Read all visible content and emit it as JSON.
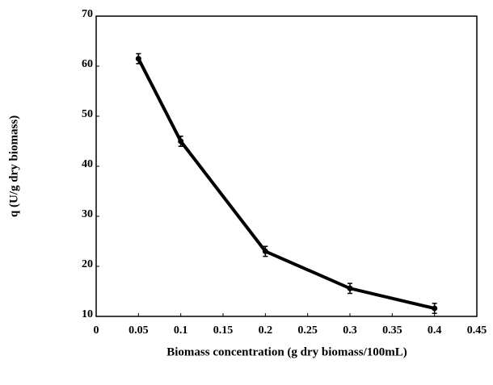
{
  "chart_data": {
    "type": "line",
    "x_label": "Biomass concentration (g dry biomass/100mL)",
    "y_label": "q (U/g dry biomass)",
    "x": [
      0.05,
      0.1,
      0.2,
      0.3,
      0.4
    ],
    "values": [
      61.5,
      45,
      23,
      15.6,
      11.6
    ],
    "errors": [
      1,
      1,
      1,
      1,
      1
    ],
    "color": "#000000",
    "xlim": [
      0,
      0.45
    ],
    "xticks": [
      0,
      0.05,
      0.1,
      0.15,
      0.2,
      0.25,
      0.3,
      0.35,
      0.4,
      0.45
    ],
    "ylim": [
      10,
      70
    ],
    "yticks": [
      10,
      20,
      30,
      40,
      50,
      60,
      70
    ]
  }
}
